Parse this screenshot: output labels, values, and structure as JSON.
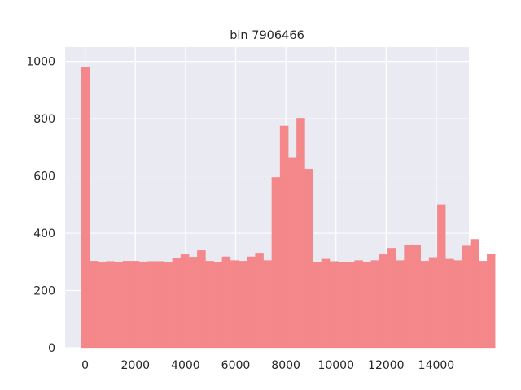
{
  "chart_data": {
    "type": "bar",
    "title": "bin 7906466",
    "xlabel": "",
    "ylabel": "",
    "xlim": [
      -800,
      15300
    ],
    "ylim": [
      0,
      1050
    ],
    "xticks": [
      0,
      2000,
      4000,
      6000,
      8000,
      10000,
      12000,
      14000
    ],
    "yticks": [
      0,
      200,
      400,
      600,
      800,
      1000
    ],
    "grid": true,
    "bar_color": "#f4878a",
    "background": "#eaeaf2",
    "bin_start": -150,
    "bin_width": 330,
    "values": [
      980,
      303,
      299,
      302,
      300,
      303,
      303,
      300,
      302,
      302,
      300,
      312,
      326,
      317,
      340,
      303,
      300,
      318,
      305,
      303,
      318,
      331,
      305,
      595,
      775,
      665,
      802,
      624,
      300,
      310,
      302,
      300,
      300,
      305,
      300,
      305,
      326,
      348,
      305,
      360,
      360,
      303,
      316,
      500,
      310,
      305,
      356,
      379,
      303,
      328
    ]
  }
}
